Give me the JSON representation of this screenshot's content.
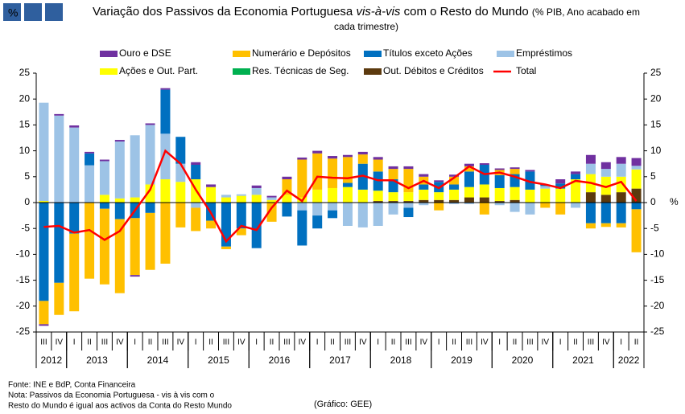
{
  "chart_data": {
    "type": "bar",
    "title": "Variação dos Passivos da Economia Portuguesa",
    "title_italic": "vis-à-vis",
    "title_end": "com o Resto do Mundo",
    "subtitle": "(% PIB, Ano acabado em cada trimestre)",
    "y_label": "%",
    "categories": [
      "III",
      "IV",
      "I",
      "II",
      "III",
      "IV",
      "I",
      "II",
      "III",
      "IV",
      "I",
      "II",
      "III",
      "IV",
      "I",
      "II",
      "III",
      "IV",
      "I",
      "II",
      "III",
      "IV",
      "I",
      "II",
      "III",
      "IV",
      "I",
      "II",
      "III",
      "IV",
      "I",
      "II",
      "III",
      "IV",
      "I",
      "II",
      "III",
      "IV",
      "I",
      "II"
    ],
    "years": [
      {
        "label": "2012",
        "quarters": 2
      },
      {
        "label": "2013",
        "quarters": 4
      },
      {
        "label": "2014",
        "quarters": 4
      },
      {
        "label": "2015",
        "quarters": 4
      },
      {
        "label": "2016",
        "quarters": 4
      },
      {
        "label": "2017",
        "quarters": 4
      },
      {
        "label": "2018",
        "quarters": 4
      },
      {
        "label": "2019",
        "quarters": 4
      },
      {
        "label": "2020",
        "quarters": 4
      },
      {
        "label": "2021",
        "quarters": 4
      },
      {
        "label": "2022",
        "quarters": 2
      }
    ],
    "ylim": [
      -25,
      25
    ],
    "yticks": [
      -25,
      -20,
      -15,
      -10,
      -5,
      0,
      5,
      10,
      15,
      20,
      25
    ],
    "series": [
      {
        "name": "Ouro e DSE",
        "color": "#7030a0",
        "values": [
          -0.3,
          0.3,
          0.4,
          0.3,
          0.3,
          0.3,
          -0.3,
          0.3,
          0.3,
          0,
          0.5,
          0.5,
          0,
          0,
          0.5,
          0.3,
          0.5,
          0.4,
          0.5,
          0.5,
          0.4,
          0.5,
          0.5,
          0.5,
          0.5,
          0.5,
          0.3,
          0.4,
          0.5,
          0.3,
          0.3,
          0.3,
          0.3,
          0,
          0.8,
          0.5,
          1.7,
          1.3,
          1.3,
          1.5
        ]
      },
      {
        "name": "Numerário e Depósitos",
        "color": "#ffc000",
        "values": [
          -4.5,
          -6.2,
          -15,
          -14.7,
          -14.6,
          -14.3,
          -11,
          -11,
          -11.8,
          -4.8,
          -4.5,
          -1.5,
          -0.5,
          -1.3,
          0,
          -3.7,
          3,
          7.3,
          7,
          5.7,
          5,
          1.8,
          2.3,
          2,
          4.5,
          1.5,
          -1.5,
          1.5,
          1,
          -2.3,
          1,
          1,
          0,
          -1,
          -2.3,
          0,
          -1,
          -0.7,
          -0.8,
          -8.3
        ]
      },
      {
        "name": "Títulos exceto Ações",
        "color": "#0070c0",
        "values": [
          -19,
          -15.5,
          -6,
          2.3,
          -1.2,
          -3.2,
          -3,
          -2,
          8.5,
          5.2,
          2.8,
          -3.5,
          -8.5,
          -5,
          -8.8,
          0,
          -2.7,
          -6.8,
          -2.5,
          -1.5,
          0.8,
          5,
          3.7,
          2.5,
          -1.8,
          1,
          2,
          1,
          3,
          3.8,
          2.5,
          2.5,
          3.5,
          0.3,
          1,
          1,
          -4,
          -4,
          -4,
          -1.3
        ]
      },
      {
        "name": "Empréstimos",
        "color": "#9dc3e6",
        "values": [
          19,
          16.8,
          14.5,
          7.2,
          6.5,
          11,
          12,
          11.5,
          8.8,
          3.5,
          -1,
          0,
          0.5,
          0.3,
          1.3,
          0.5,
          0,
          -1.5,
          -2.5,
          -1.5,
          -4.5,
          -4.8,
          -4.5,
          -2.3,
          -1,
          -0.5,
          0,
          -0.3,
          -0.3,
          0,
          -0.5,
          -1.8,
          -2.3,
          0.5,
          0,
          -1,
          2,
          1.5,
          2.5,
          0.7
        ]
      },
      {
        "name": "Ações e Out. Part.",
        "color": "#ffff00",
        "values": [
          0.3,
          0,
          0,
          0,
          1.5,
          0.8,
          1,
          3.5,
          4.5,
          4,
          4.5,
          3,
          1,
          1.3,
          1.5,
          0.5,
          1.5,
          1,
          2.5,
          2.8,
          3,
          2.5,
          2,
          1.7,
          1.7,
          2,
          1.5,
          2,
          2,
          2.5,
          2.5,
          2.5,
          2.5,
          2.7,
          2.7,
          4.5,
          3.5,
          3.5,
          3,
          3.7
        ]
      },
      {
        "name": "Res. Técnicas de Seg.",
        "color": "#00b050",
        "values": [
          0,
          0,
          0,
          0,
          0,
          0,
          0,
          0,
          0,
          0,
          0,
          0,
          0,
          0,
          0,
          0,
          0,
          0,
          0,
          0,
          0,
          0,
          0,
          0,
          0,
          0,
          0,
          0,
          0,
          0,
          0,
          0,
          0,
          0,
          0,
          0,
          0,
          0,
          0,
          0
        ]
      },
      {
        "name": "Out. Débitos e Créditos",
        "color": "#5c3a0e",
        "values": [
          0,
          0,
          0,
          0,
          0,
          0,
          0,
          0,
          0,
          0,
          0,
          0,
          0,
          0,
          0,
          0,
          0,
          0,
          0,
          0,
          0,
          0,
          0.3,
          0.3,
          0.3,
          0.5,
          0.5,
          0.5,
          1,
          1,
          0.3,
          0.5,
          0,
          0,
          0,
          0,
          2,
          1.5,
          2,
          2.7
        ]
      },
      {
        "name": "Total",
        "color": "#ff0000",
        "type": "line",
        "values": [
          -4.7,
          -4.5,
          -5.8,
          -5.3,
          -7.2,
          -5.5,
          -1.5,
          2.5,
          10,
          7.5,
          2.5,
          -2,
          -7.5,
          -4.5,
          -5.3,
          -1,
          2.3,
          0.3,
          5,
          4.8,
          4.7,
          5.2,
          4.3,
          4.3,
          2.8,
          4.2,
          2.8,
          4.8,
          7,
          5.5,
          5.8,
          5,
          4,
          3.5,
          2.8,
          4.2,
          3.8,
          3,
          4,
          0.3
        ]
      }
    ],
    "notes": [
      "Fonte: INE e BdP, Conta Financeira",
      "Nota: Passivos da Economia Portuguesa - vis à vis com o",
      "Resto do Mundo é igual aos activos da Conta do Resto Mundo"
    ],
    "credit": "(Gráfico: GEE)"
  }
}
